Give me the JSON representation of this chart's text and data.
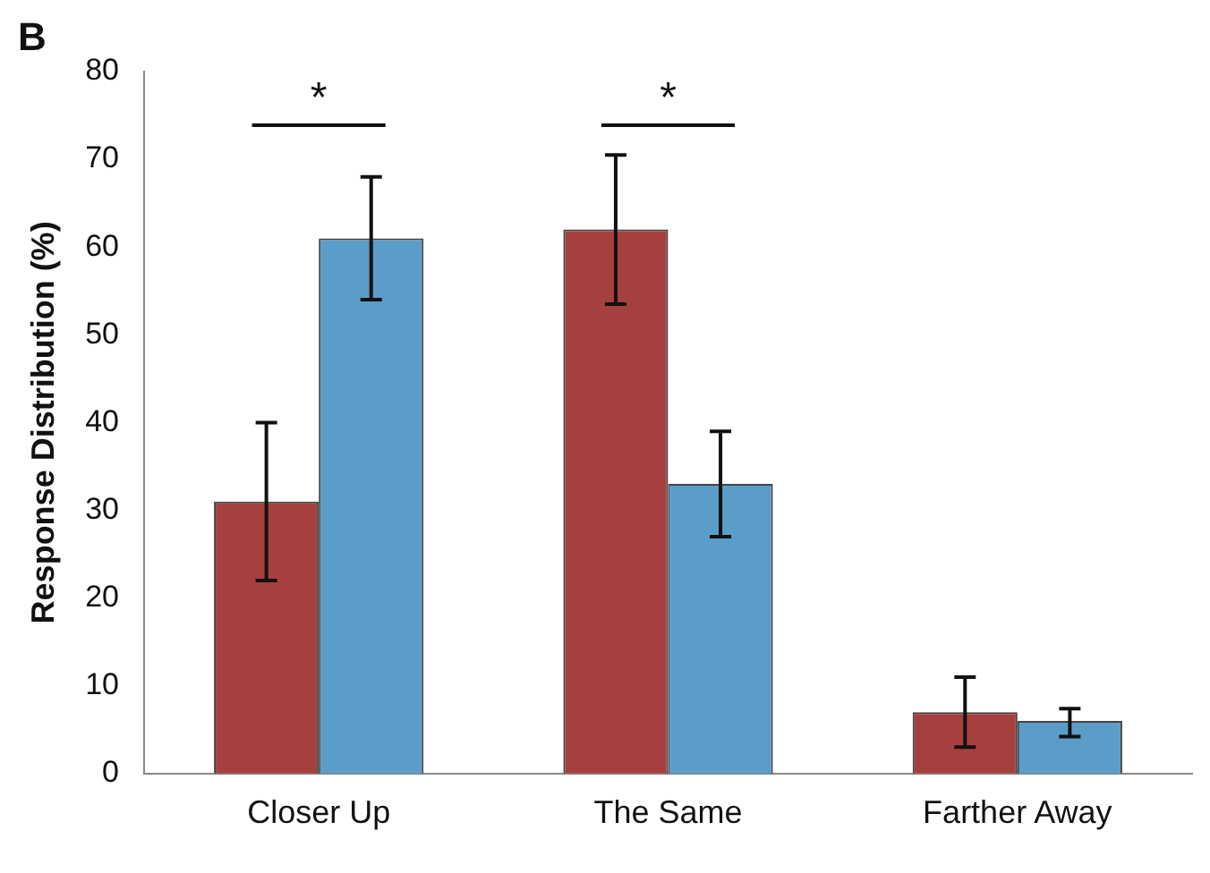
{
  "chart_data": {
    "type": "bar",
    "ylabel": "Response Distribution (%)",
    "categories": [
      "Closer Up",
      "The Same",
      "Farther Away"
    ],
    "series": [
      {
        "color": "#a6403e",
        "values": [
          31,
          62,
          7
        ],
        "errors": [
          [
            22,
            40
          ],
          [
            53.5,
            70.5
          ],
          [
            3,
            11
          ]
        ]
      },
      {
        "color": "#5b9dc9",
        "values": [
          61,
          33,
          6
        ],
        "errors": [
          [
            54,
            68
          ],
          [
            27,
            39
          ],
          [
            4.2,
            7.4
          ]
        ]
      }
    ],
    "ylim": [
      0,
      80
    ],
    "yticks": [
      0,
      10,
      20,
      30,
      40,
      50,
      60,
      70,
      80
    ],
    "grid": false,
    "legend": false,
    "annotations": [
      "B",
      "*",
      "*"
    ]
  }
}
